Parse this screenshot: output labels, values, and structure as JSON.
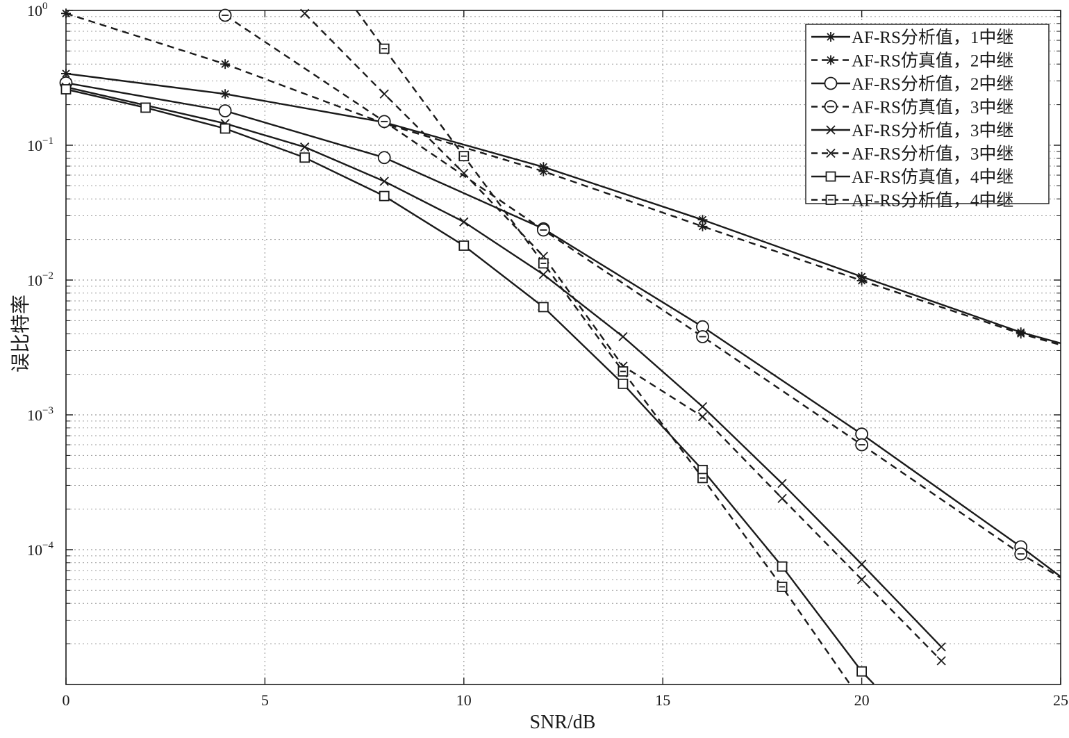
{
  "chart_data": {
    "type": "line",
    "xlabel": "SNR/dB",
    "ylabel": "误比特率",
    "xlim": [
      0,
      25
    ],
    "ylim_exponent": [
      -5,
      0
    ],
    "y_scale": "log",
    "grid": true,
    "legend_position": "top-right",
    "x_ticks": [
      "0",
      "5",
      "10",
      "15",
      "20",
      "25"
    ],
    "y_ticks": [
      {
        "base": "10",
        "exp": "0",
        "value": 1
      },
      {
        "base": "10",
        "exp": "−1",
        "value": 0.1
      },
      {
        "base": "10",
        "exp": "−2",
        "value": 0.01
      },
      {
        "base": "10",
        "exp": "−3",
        "value": 0.001
      },
      {
        "base": "10",
        "exp": "−4",
        "value": 0.0001
      }
    ],
    "series": [
      {
        "name": "AF-RS分析值，1中继",
        "line": "solid",
        "marker": "star",
        "x": [
          0,
          4,
          8,
          12,
          16,
          20,
          24,
          25
        ],
        "y": [
          0.34,
          0.24,
          0.148,
          0.069,
          0.028,
          0.0106,
          0.0041,
          0.0034
        ]
      },
      {
        "name": "AF-RS仿真值，2中继",
        "line": "dashed",
        "marker": "star",
        "x": [
          0,
          4,
          8,
          12,
          16,
          20,
          24,
          25
        ],
        "y": [
          0.95,
          0.4,
          0.145,
          0.064,
          0.025,
          0.0099,
          0.004,
          0.0033
        ]
      },
      {
        "name": "AF-RS分析值，2中继",
        "line": "solid",
        "marker": "circle",
        "x": [
          0,
          4,
          8,
          12,
          16,
          20,
          24,
          25
        ],
        "y": [
          0.29,
          0.18,
          0.081,
          0.024,
          0.0045,
          0.00072,
          0.000105,
          6.3e-05
        ]
      },
      {
        "name": "AF-RS仿真值，3中继",
        "line": "dashed",
        "marker": "circle-dash",
        "x": [
          4,
          8,
          12,
          16,
          20,
          24,
          25
        ],
        "y": [
          0.92,
          0.15,
          0.0235,
          0.0038,
          0.0006,
          9.3e-05,
          6.2e-05
        ]
      },
      {
        "name": "AF-RS分析值，3中继",
        "line": "solid",
        "marker": "x",
        "x": [
          0,
          4,
          6,
          8,
          10,
          12,
          14,
          16,
          18,
          20,
          22
        ],
        "y": [
          0.27,
          0.145,
          0.097,
          0.054,
          0.027,
          0.011,
          0.0038,
          0.00115,
          0.00031,
          7.8e-05,
          1.9e-05
        ]
      },
      {
        "name": "AF-RS分析值，3中继",
        "line": "dashed",
        "marker": "x",
        "x": [
          6,
          8,
          10,
          12,
          14,
          16,
          18,
          20,
          22
        ],
        "y": [
          0.95,
          0.24,
          0.062,
          0.015,
          0.0023,
          0.00097,
          0.00024,
          6e-05,
          1.5e-05
        ]
      },
      {
        "name": "AF-RS仿真值，4中继",
        "line": "solid",
        "marker": "square",
        "x": [
          0,
          2,
          4,
          6,
          8,
          10,
          12,
          14,
          16,
          18,
          20,
          20.3
        ],
        "y": [
          0.26,
          0.19,
          0.133,
          0.081,
          0.042,
          0.018,
          0.0063,
          0.0017,
          0.00039,
          7.5e-05,
          1.25e-05,
          1.01e-05
        ]
      },
      {
        "name": "AF-RS分析值，4中继",
        "line": "dashed",
        "marker": "square-dash",
        "x": [
          7.3,
          8,
          10,
          12,
          14,
          16,
          18,
          19.7
        ],
        "y": [
          1.0,
          0.52,
          0.083,
          0.0133,
          0.0021,
          0.00034,
          5.3e-05,
          1.01e-05
        ]
      }
    ],
    "legend_entries": [
      {
        "label": "AF-RS分析值，1中继",
        "line": "solid",
        "marker": "star"
      },
      {
        "label": "AF-RS仿真值，2中继",
        "line": "dashed",
        "marker": "star"
      },
      {
        "label": "AF-RS分析值，2中继",
        "line": "solid",
        "marker": "circle"
      },
      {
        "label": "AF-RS仿真值，3中继",
        "line": "dashed",
        "marker": "circle-dash"
      },
      {
        "label": "AF-RS分析值，3中继",
        "line": "solid",
        "marker": "x"
      },
      {
        "label": "AF-RS分析值，3中继",
        "line": "dashed",
        "marker": "x"
      },
      {
        "label": "AF-RS仿真值，4中继",
        "line": "solid",
        "marker": "square"
      },
      {
        "label": "AF-RS分析值，4中继",
        "line": "dashed",
        "marker": "square-dash"
      }
    ],
    "colors": {
      "line": "#1a1a1a",
      "grid": "#9a9a9a",
      "background": "#ffffff"
    }
  }
}
